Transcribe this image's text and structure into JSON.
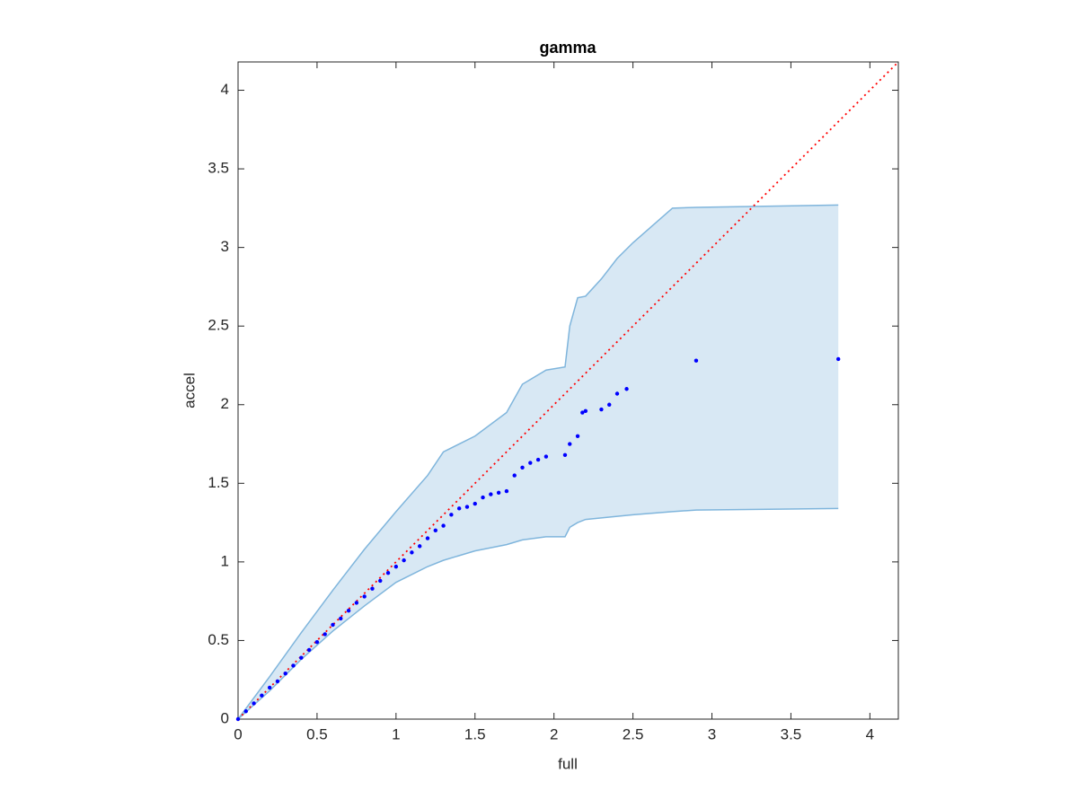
{
  "chart_data": {
    "type": "scatter",
    "title": "gamma",
    "x_label": "full",
    "y_label": "accel",
    "xlim": [
      0,
      4.18
    ],
    "ylim": [
      0,
      4.18
    ],
    "xticks": [
      0,
      0.5,
      1,
      1.5,
      2,
      2.5,
      3,
      3.5,
      4
    ],
    "yticks": [
      0,
      0.5,
      1,
      1.5,
      2,
      2.5,
      3,
      3.5,
      4
    ],
    "grid": false,
    "series": [
      {
        "color": "#0000ff",
        "x": [
          0,
          0.05,
          0.1,
          0.15,
          0.2,
          0.25,
          0.3,
          0.35,
          0.4,
          0.45,
          0.5,
          0.55,
          0.6,
          0.65,
          0.7,
          0.75,
          0.8,
          0.85,
          0.9,
          0.95,
          1.0,
          1.05,
          1.1,
          1.15,
          1.2,
          1.25,
          1.3,
          1.35,
          1.4,
          1.45,
          1.5,
          1.55,
          1.6,
          1.65,
          1.7,
          1.75,
          1.8,
          1.85,
          1.9,
          1.95,
          2.07,
          2.1,
          2.15,
          2.18,
          2.2,
          2.3,
          2.35,
          2.4,
          2.46,
          2.9,
          3.8
        ],
        "values": [
          0,
          0.05,
          0.1,
          0.15,
          0.2,
          0.24,
          0.29,
          0.34,
          0.39,
          0.44,
          0.49,
          0.54,
          0.6,
          0.64,
          0.69,
          0.74,
          0.78,
          0.83,
          0.88,
          0.93,
          0.97,
          1.01,
          1.06,
          1.1,
          1.15,
          1.2,
          1.23,
          1.3,
          1.34,
          1.35,
          1.37,
          1.41,
          1.43,
          1.44,
          1.45,
          1.55,
          1.6,
          1.63,
          1.65,
          1.67,
          1.68,
          1.75,
          1.8,
          1.95,
          1.96,
          1.97,
          2.0,
          2.07,
          2.1,
          2.28,
          2.29
        ]
      }
    ],
    "band": {
      "color": "#7fb5dc",
      "fill": "#d8e8f4",
      "x": [
        0,
        0.2,
        0.4,
        0.6,
        0.8,
        1.0,
        1.2,
        1.3,
        1.5,
        1.7,
        1.8,
        1.95,
        2.07,
        2.1,
        2.15,
        2.2,
        2.3,
        2.4,
        2.5,
        2.75,
        2.9,
        3.8
      ],
      "upper": [
        0,
        0.27,
        0.55,
        0.82,
        1.08,
        1.32,
        1.55,
        1.7,
        1.8,
        1.95,
        2.13,
        2.22,
        2.24,
        2.5,
        2.68,
        2.69,
        2.8,
        2.93,
        3.03,
        3.25,
        3.255,
        3.27
      ],
      "lower": [
        0,
        0.18,
        0.38,
        0.56,
        0.72,
        0.87,
        0.97,
        1.01,
        1.07,
        1.11,
        1.14,
        1.16,
        1.16,
        1.22,
        1.25,
        1.27,
        1.28,
        1.29,
        1.3,
        1.32,
        1.33,
        1.34
      ]
    },
    "reference_line": {
      "color": "#ff0000",
      "x": [
        0,
        4.18
      ],
      "values": [
        0,
        4.18
      ]
    }
  }
}
